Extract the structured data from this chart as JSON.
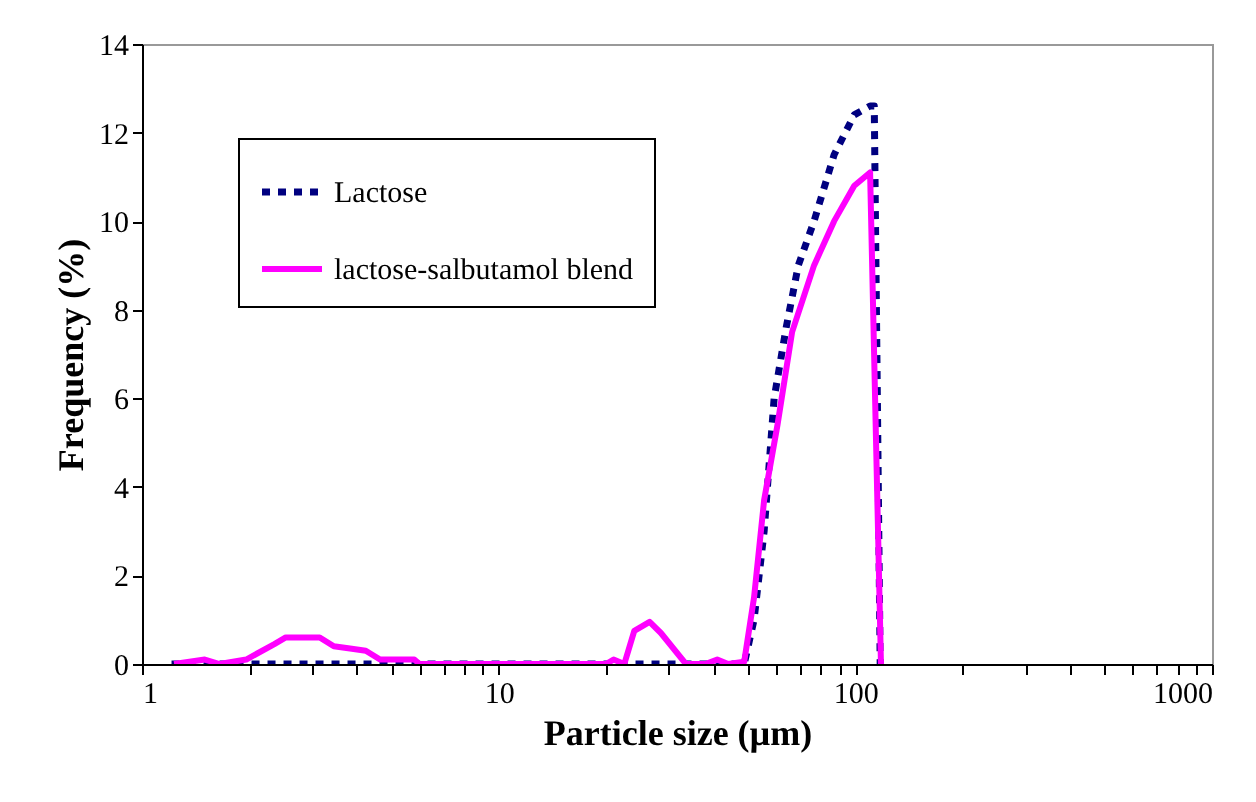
{
  "chart_data": {
    "type": "line",
    "xlabel": "Particle size (µm)",
    "ylabel": "Frequency (%)",
    "log": "x",
    "xlim": [
      1,
      1000
    ],
    "ylim": [
      0,
      14
    ],
    "xticks": [
      1,
      {
        "value": 2,
        "label": null
      },
      {
        "value": 3,
        "label": null
      },
      {
        "value": 4,
        "label": null
      },
      {
        "value": 5,
        "label": null
      },
      {
        "value": 6,
        "label": null
      },
      {
        "value": 7,
        "label": null
      },
      {
        "value": 8,
        "label": null
      },
      {
        "value": 9,
        "label": null
      },
      10,
      {
        "value": 20,
        "label": null
      },
      {
        "value": 30,
        "label": null
      },
      {
        "value": 40,
        "label": null
      },
      {
        "value": 50,
        "label": null
      },
      {
        "value": 60,
        "label": null
      },
      {
        "value": 70,
        "label": null
      },
      {
        "value": 80,
        "label": null
      },
      {
        "value": 90,
        "label": null
      },
      100,
      {
        "value": 200,
        "label": null
      },
      {
        "value": 300,
        "label": null
      },
      {
        "value": 400,
        "label": null
      },
      {
        "value": 500,
        "label": null
      },
      {
        "value": 600,
        "label": null
      },
      {
        "value": 700,
        "label": null
      },
      {
        "value": 800,
        "label": null
      },
      {
        "value": 900,
        "label": null
      },
      1000
    ],
    "yticks": [
      0,
      2,
      4,
      6,
      8,
      10,
      12,
      14
    ],
    "grid": false,
    "legend": "top left",
    "series": [
      {
        "name": "Lactose",
        "color": "#000080",
        "line_style": "dashed",
        "x": [
          1.21,
          10,
          30,
          48.8,
          52,
          55.5,
          59.2,
          64,
          69.2,
          76.6,
          87.2,
          99.3,
          110,
          113,
          117.4
        ],
        "values": [
          0,
          0,
          0,
          0,
          1.0,
          3.0,
          6.0,
          7.6,
          9.0,
          10.0,
          11.5,
          12.4,
          12.6,
          12.6,
          0
        ]
      },
      {
        "name": "lactose-salbutamol blend",
        "color": "#ff00ff",
        "line_style": "solid",
        "x": [
          1.23,
          1.5,
          1.65,
          1.96,
          2.35,
          2.53,
          3.15,
          3.45,
          3.83,
          4.24,
          4.65,
          5.8,
          6.0,
          20,
          21,
          22.5,
          24,
          26.5,
          28.5,
          33.5,
          38,
          41,
          44,
          48.8,
          52,
          55.5,
          60.5,
          66.5,
          76.6,
          87.2,
          99.3,
          110,
          118
        ],
        "values": [
          0,
          0.1,
          0,
          0.1,
          0.45,
          0.6,
          0.6,
          0.4,
          0.35,
          0.3,
          0.1,
          0.1,
          0,
          0,
          0.1,
          0,
          0.75,
          0.95,
          0.7,
          0,
          0,
          0.1,
          0,
          0.05,
          1.5,
          3.7,
          5.4,
          7.5,
          9.0,
          10.0,
          10.8,
          11.1,
          0
        ]
      }
    ]
  }
}
